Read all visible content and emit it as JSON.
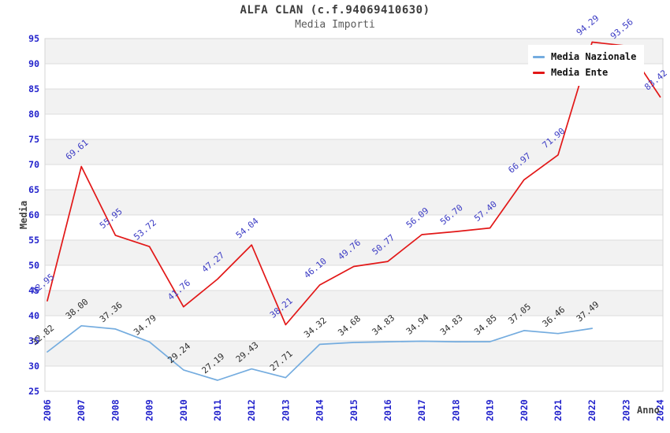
{
  "header": {
    "title": "ALFA CLAN (c.f.94069410630)",
    "subtitle": "Media Importi"
  },
  "axes": {
    "y_title": "Media",
    "x_title": "Anno"
  },
  "legend": {
    "items": [
      {
        "label": "Media Nazionale",
        "color": "#74acdf"
      },
      {
        "label": "Media Ente",
        "color": "#e21717"
      }
    ]
  },
  "colors": {
    "band": "#f2f2f2",
    "grid": "#dcdcdc",
    "border": "#d6d6d6",
    "tick_label": "#2323cc",
    "axis_title": "#404040",
    "title": "#3c3c3c",
    "subtitle": "#5a5a5a"
  },
  "chart_data": {
    "type": "line",
    "title": "ALFA CLAN (c.f.94069410630)",
    "subtitle": "Media Importi",
    "xlabel": "Anno",
    "ylabel": "Media",
    "ylim": [
      25,
      95
    ],
    "y_tick_step": 5,
    "grid": true,
    "legend_position": "top-right",
    "categories": [
      "2006",
      "2007",
      "2008",
      "2009",
      "2010",
      "2011",
      "2012",
      "2013",
      "2014",
      "2015",
      "2016",
      "2017",
      "2018",
      "2019",
      "2020",
      "2021",
      "2022",
      "2023",
      "2024"
    ],
    "series": [
      {
        "name": "Media Nazionale",
        "color": "#74acdf",
        "label_color": "#2e2e2e",
        "values": [
          32.82,
          38.0,
          37.36,
          34.79,
          29.24,
          27.19,
          29.43,
          27.71,
          34.32,
          34.68,
          34.83,
          34.94,
          34.83,
          34.85,
          37.05,
          36.46,
          37.49,
          null,
          null
        ]
      },
      {
        "name": "Media Ente",
        "color": "#e21717",
        "label_color": "#3b3bc4",
        "values": [
          42.95,
          69.61,
          55.95,
          53.72,
          41.76,
          47.27,
          54.04,
          38.21,
          46.1,
          49.76,
          50.77,
          56.09,
          56.7,
          57.4,
          66.97,
          71.9,
          94.29,
          93.56,
          83.42
        ]
      }
    ]
  }
}
